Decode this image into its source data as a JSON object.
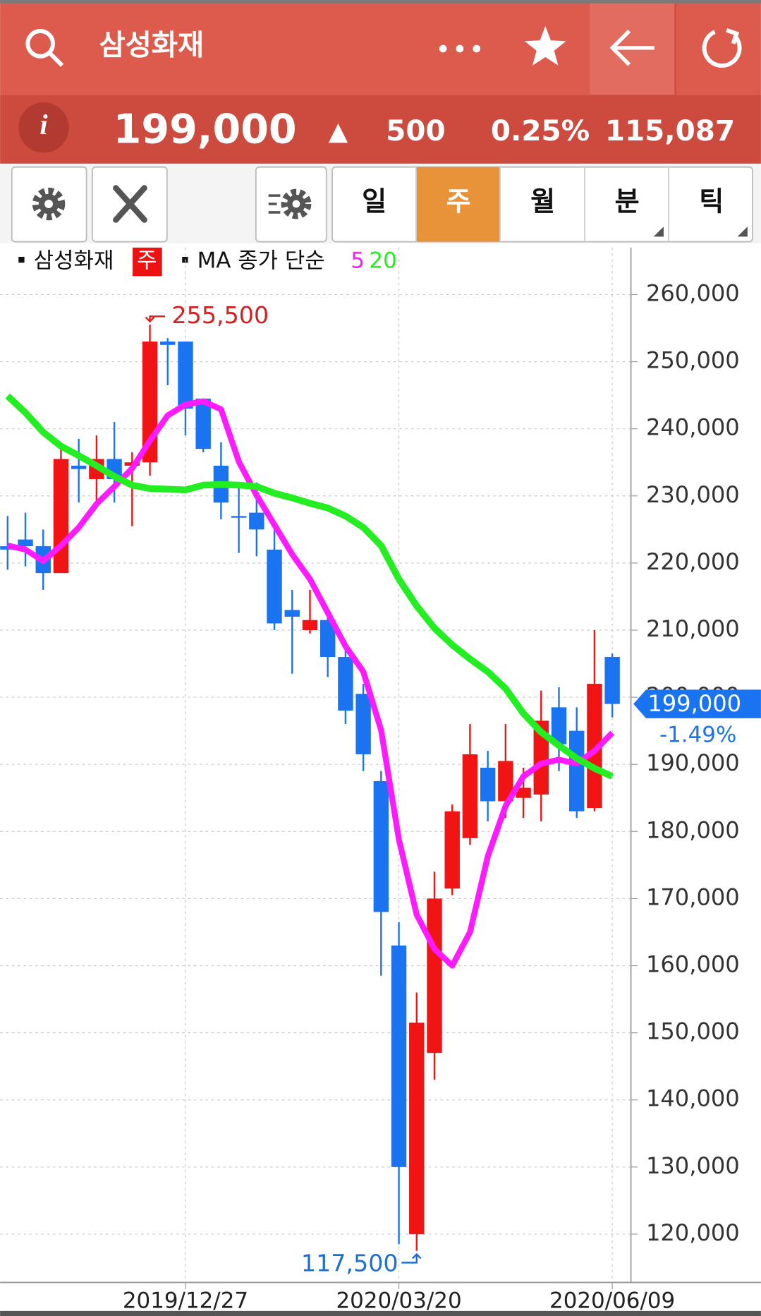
{
  "header": {
    "title": "삼성화재"
  },
  "quote": {
    "info": "i",
    "price": "199,000",
    "direction": "▲",
    "change": "500",
    "change_rate": "0.25%",
    "volume": "115,087"
  },
  "toolbar": {
    "periods": [
      "일",
      "주",
      "월",
      "분",
      "틱"
    ]
  },
  "chart_data": {
    "type": "candlestick",
    "period": "주",
    "ma_label": "MA 종가 단순",
    "categories": [
      null,
      null,
      null,
      null,
      null,
      null,
      null,
      null,
      null,
      null,
      "2019/12/27",
      null,
      null,
      null,
      null,
      null,
      null,
      null,
      null,
      null,
      null,
      null,
      "2020/03/20",
      null,
      null,
      null,
      null,
      null,
      null,
      null,
      null,
      null,
      null,
      null,
      "2020/06/09"
    ],
    "series": [
      {
        "name": "삼성화재",
        "up_color": "#f01414",
        "down_color": "#1a73f0",
        "open": [
          222500,
          223500,
          222500,
          218500,
          234500,
          232500,
          235500,
          234500,
          235000,
          253000,
          253000,
          244500,
          234500,
          227000,
          227500,
          222000,
          213000,
          210000,
          211500,
          206000,
          200500,
          187500,
          163000,
          120000,
          147000,
          171500,
          179000,
          189500,
          184500,
          185000,
          185500,
          198500,
          195000,
          183500,
          206000
        ],
        "high": [
          227000,
          227500,
          225000,
          237000,
          238500,
          239000,
          241000,
          236500,
          255500,
          253500,
          253000,
          244500,
          238000,
          231500,
          232000,
          226000,
          216000,
          216000,
          212000,
          208500,
          202000,
          189000,
          166500,
          156000,
          174000,
          184000,
          196000,
          192000,
          196000,
          189500,
          201000,
          201500,
          198500,
          210000,
          206500
        ],
        "low": [
          219000,
          219500,
          216000,
          218500,
          229000,
          229000,
          229000,
          225500,
          233000,
          246500,
          239000,
          236500,
          226500,
          221500,
          221000,
          210000,
          203500,
          209500,
          203000,
          196000,
          189000,
          158500,
          118500,
          117500,
          143000,
          170500,
          178000,
          181500,
          182000,
          182000,
          181500,
          189000,
          182000,
          183000,
          197000
        ],
        "close": [
          222000,
          222500,
          218500,
          235500,
          234000,
          235500,
          232500,
          235000,
          253000,
          252500,
          243000,
          237000,
          229000,
          226800,
          225000,
          211000,
          212000,
          211500,
          206000,
          198000,
          191500,
          168000,
          130000,
          151500,
          170000,
          183000,
          191500,
          184500,
          190500,
          186500,
          196500,
          193000,
          183000,
          202000,
          199000
        ]
      },
      {
        "name": "5",
        "color": "#ff1aff",
        "values": [
          222600,
          222000,
          220300,
          222600,
          225300,
          228800,
          231400,
          234100,
          238200,
          242000,
          243600,
          244100,
          242900,
          235100,
          230100,
          225700,
          221300,
          217600,
          212600,
          207600,
          203800,
          195100,
          178800,
          167600,
          162500,
          160000,
          165000,
          176300,
          183800,
          188200,
          190100,
          190700,
          190100,
          192000,
          194700
        ]
      },
      {
        "name": "20",
        "color": "#22ee22",
        "values": [
          244900,
          242400,
          239500,
          237400,
          236000,
          234500,
          232900,
          231600,
          231100,
          231000,
          230900,
          231600,
          231700,
          231600,
          231400,
          230400,
          229700,
          228900,
          228200,
          227000,
          225300,
          222600,
          217600,
          213600,
          210300,
          207800,
          205700,
          203800,
          201300,
          197600,
          194800,
          192800,
          190900,
          189400,
          188200
        ]
      }
    ],
    "annotations": [
      {
        "value": 255500,
        "label": "255,500",
        "color": "#d42020"
      },
      {
        "value": 117500,
        "label": "117,500",
        "color": "#1a6fd0"
      }
    ],
    "last_price": {
      "value": 199000,
      "label": "199,000",
      "change": "-1.49%",
      "color": "#1a73f0"
    },
    "ylim": [
      112800,
      267000
    ],
    "yticks": [
      {
        "value": 120000,
        "label": "120,000"
      },
      {
        "value": 130000,
        "label": "130,000"
      },
      {
        "value": 140000,
        "label": "140,000"
      },
      {
        "value": 150000,
        "label": "150,000"
      },
      {
        "value": 160000,
        "label": "160,000"
      },
      {
        "value": 170000,
        "label": "170,000"
      },
      {
        "value": 180000,
        "label": "180,000"
      },
      {
        "value": 190000,
        "label": "190,000"
      },
      {
        "value": 200000,
        "label": "200,000"
      },
      {
        "value": 210000,
        "label": "210,000"
      },
      {
        "value": 220000,
        "label": "220,000"
      },
      {
        "value": 230000,
        "label": "230,000"
      },
      {
        "value": 240000,
        "label": "240,000"
      },
      {
        "value": 250000,
        "label": "250,000"
      },
      {
        "value": 260000,
        "label": "260,000"
      }
    ],
    "grid": true
  }
}
